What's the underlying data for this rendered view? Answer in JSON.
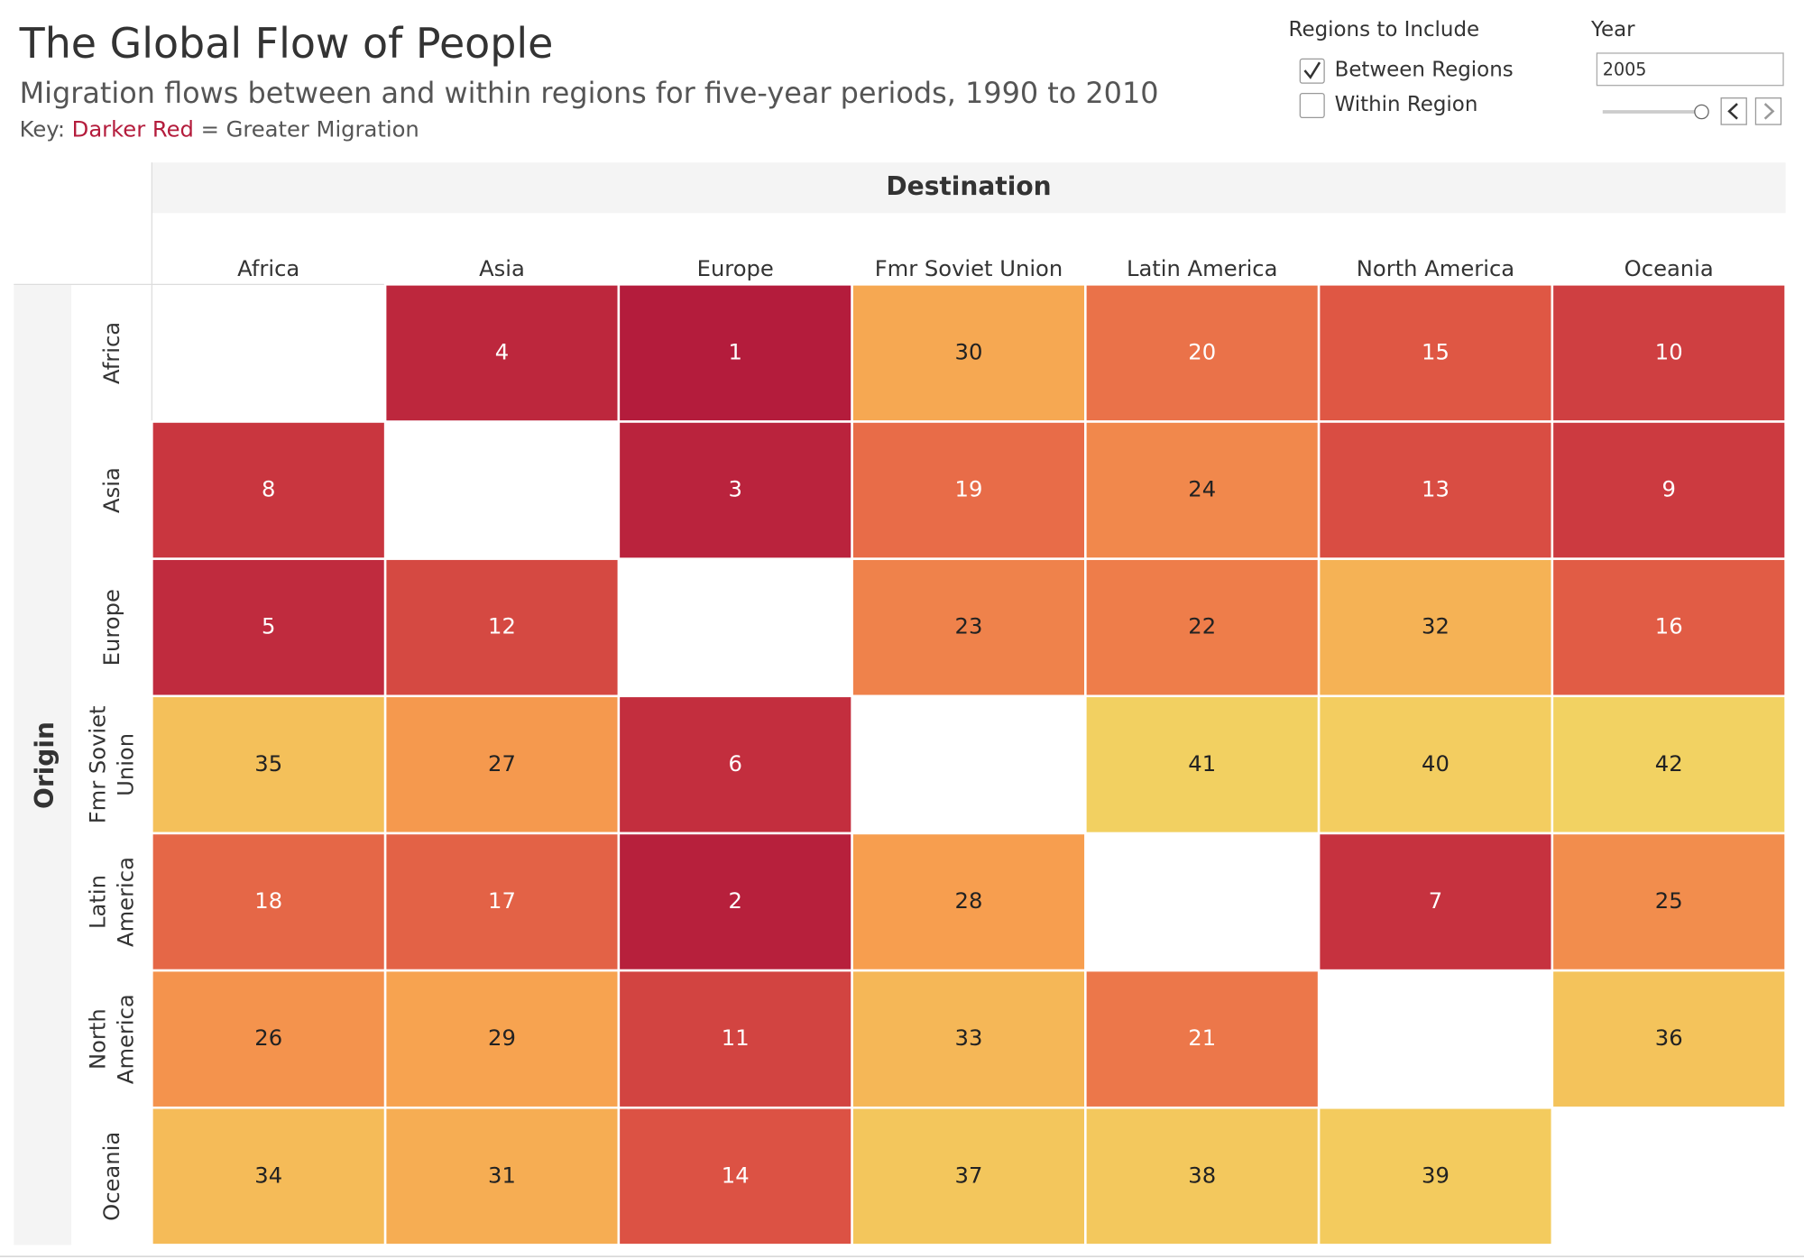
{
  "chart_data": {
    "type": "heatmap",
    "title": "The Global Flow of People",
    "subtitle": "Migration flows between and within regions for five-year periods, 1990 to 2010",
    "key": {
      "label": "Key:",
      "highlight": "Darker Red",
      "rest": "= Greater Migration",
      "highlight_color": "#b41c3c"
    },
    "x_label": "Destination",
    "y_label": "Origin",
    "categories": [
      "Africa",
      "Asia",
      "Europe",
      "Fmr Soviet Union",
      "Latin America",
      "North America",
      "Oceania"
    ],
    "rows": [
      "Africa",
      "Asia",
      "Europe",
      "Fmr Soviet Union",
      "Latin America",
      "North America",
      "Oceania"
    ],
    "values": [
      [
        null,
        4,
        1,
        30,
        20,
        15,
        10
      ],
      [
        8,
        null,
        3,
        19,
        24,
        13,
        9
      ],
      [
        5,
        12,
        null,
        23,
        22,
        32,
        16
      ],
      [
        35,
        27,
        6,
        null,
        41,
        40,
        42
      ],
      [
        18,
        17,
        2,
        28,
        null,
        7,
        25
      ],
      [
        26,
        29,
        11,
        33,
        21,
        null,
        36
      ],
      [
        34,
        31,
        14,
        37,
        38,
        39,
        null
      ]
    ],
    "color_scale": [
      "#b41c3c",
      "#c8353f",
      "#de5544",
      "#ed7a4a",
      "#f7a04f",
      "#f4c15a",
      "#f2d262"
    ]
  },
  "controls": {
    "regions_title": "Regions to Include",
    "options": [
      {
        "label": "Between Regions",
        "checked": true
      },
      {
        "label": "Within Region",
        "checked": false
      }
    ],
    "year_title": "Year",
    "year": "2005"
  }
}
